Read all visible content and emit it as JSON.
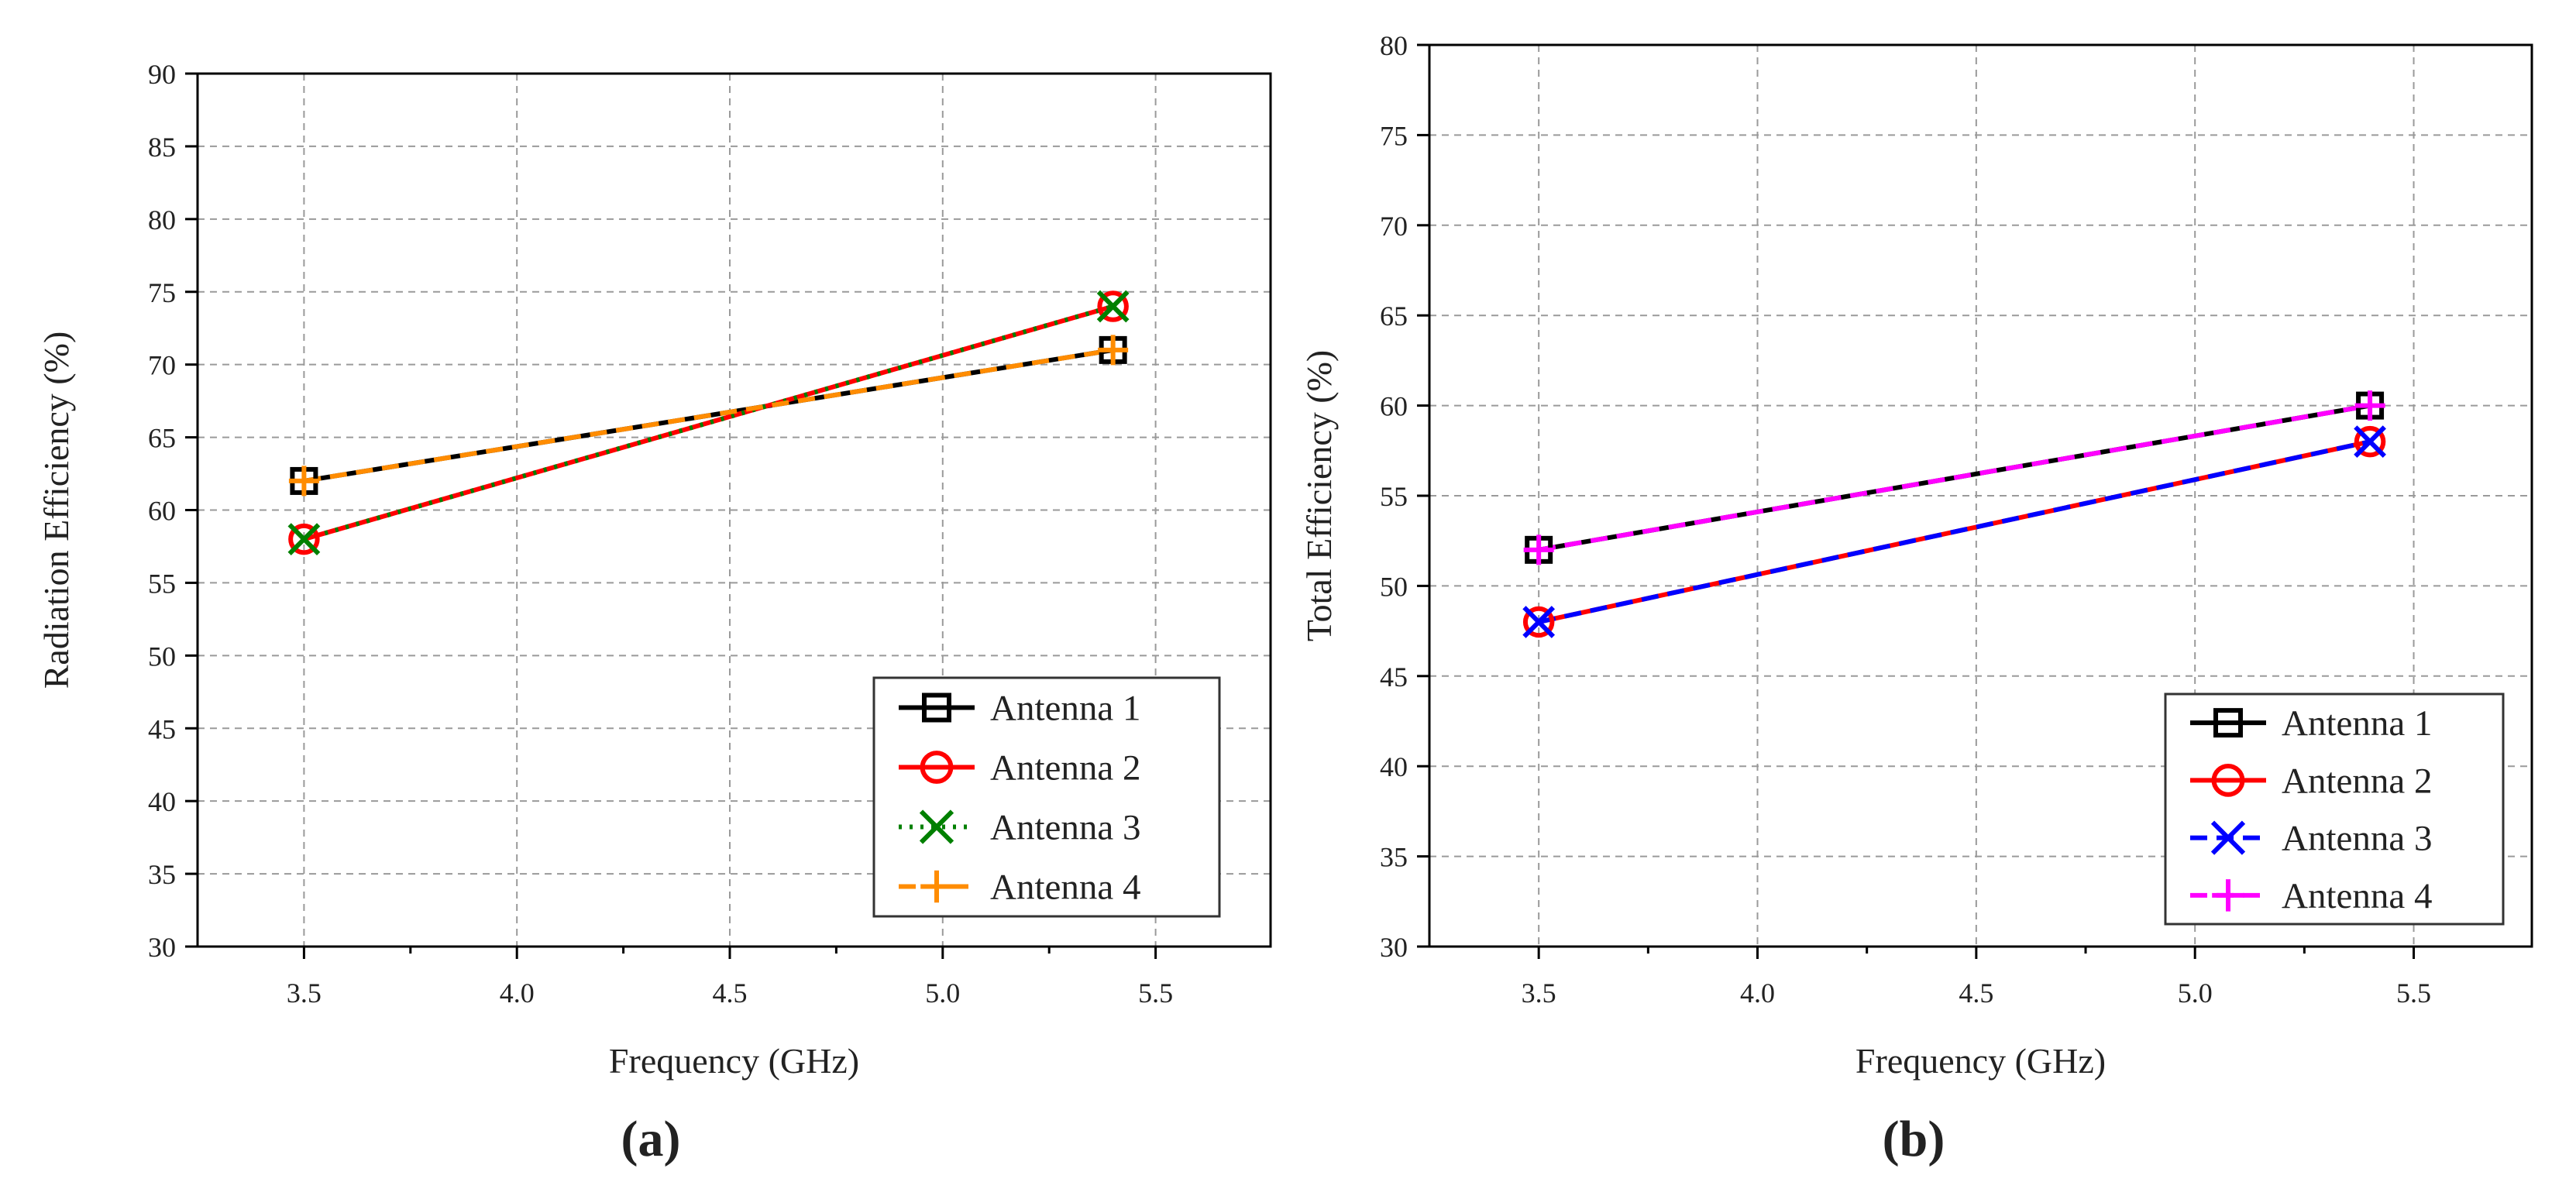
{
  "chart_data": [
    {
      "type": "line",
      "panel_label": "(a)",
      "xlabel": "Frequency (GHz)",
      "ylabel": "Radiation Efficiency (%)",
      "xlim": [
        3.25,
        5.77
      ],
      "ylim": [
        30,
        90
      ],
      "xticks": [
        3.5,
        4.0,
        4.5,
        5.0,
        5.5
      ],
      "xtick_labels": [
        "3.5",
        "4.0",
        "4.5",
        "5.0",
        "5.5"
      ],
      "yticks": [
        30,
        35,
        40,
        45,
        50,
        55,
        60,
        65,
        70,
        75,
        80,
        85,
        90
      ],
      "ytick_labels": [
        "30",
        "35",
        "40",
        "45",
        "50",
        "55",
        "60",
        "65",
        "70",
        "75",
        "80",
        "85",
        "90"
      ],
      "grid": true,
      "legend_position": "bottom-right",
      "x": [
        3.5,
        5.4
      ],
      "series": [
        {
          "name": "Antenna 1",
          "values": [
            62,
            71
          ],
          "color": "#000000",
          "marker": "square",
          "style": "solid"
        },
        {
          "name": "Antenna 2",
          "values": [
            58,
            74
          ],
          "color": "#ff0000",
          "marker": "circle",
          "style": "solid"
        },
        {
          "name": "Antenna 3",
          "values": [
            58,
            74
          ],
          "color": "#008000",
          "marker": "x",
          "style": "dotted"
        },
        {
          "name": "Antenna 4",
          "values": [
            62,
            71
          ],
          "color": "#ff8c00",
          "marker": "plus",
          "style": "dashed"
        }
      ]
    },
    {
      "type": "line",
      "panel_label": "(b)",
      "xlabel": "Frequency (GHz)",
      "ylabel": "Total Efficiency (%)",
      "xlim": [
        3.25,
        5.77
      ],
      "ylim": [
        30,
        80
      ],
      "xticks": [
        3.5,
        4.0,
        4.5,
        5.0,
        5.5
      ],
      "xtick_labels": [
        "3.5",
        "4.0",
        "4.5",
        "5.0",
        "5.5"
      ],
      "yticks": [
        30,
        35,
        40,
        45,
        50,
        55,
        60,
        65,
        70,
        75,
        80
      ],
      "ytick_labels": [
        "30",
        "35",
        "40",
        "45",
        "50",
        "55",
        "60",
        "65",
        "70",
        "75",
        "80"
      ],
      "grid": true,
      "legend_position": "bottom-right",
      "x": [
        3.5,
        5.4
      ],
      "series": [
        {
          "name": "Antenna 1",
          "values": [
            52,
            60
          ],
          "color": "#000000",
          "marker": "square",
          "style": "solid"
        },
        {
          "name": "Antenna 2",
          "values": [
            48,
            58
          ],
          "color": "#ff0000",
          "marker": "circle",
          "style": "solid"
        },
        {
          "name": "Antenna 3",
          "values": [
            48,
            58
          ],
          "color": "#0000ff",
          "marker": "x",
          "style": "dashed"
        },
        {
          "name": "Antenna 4",
          "values": [
            52,
            60
          ],
          "color": "#ff00ff",
          "marker": "plus",
          "style": "dashed"
        }
      ]
    }
  ]
}
